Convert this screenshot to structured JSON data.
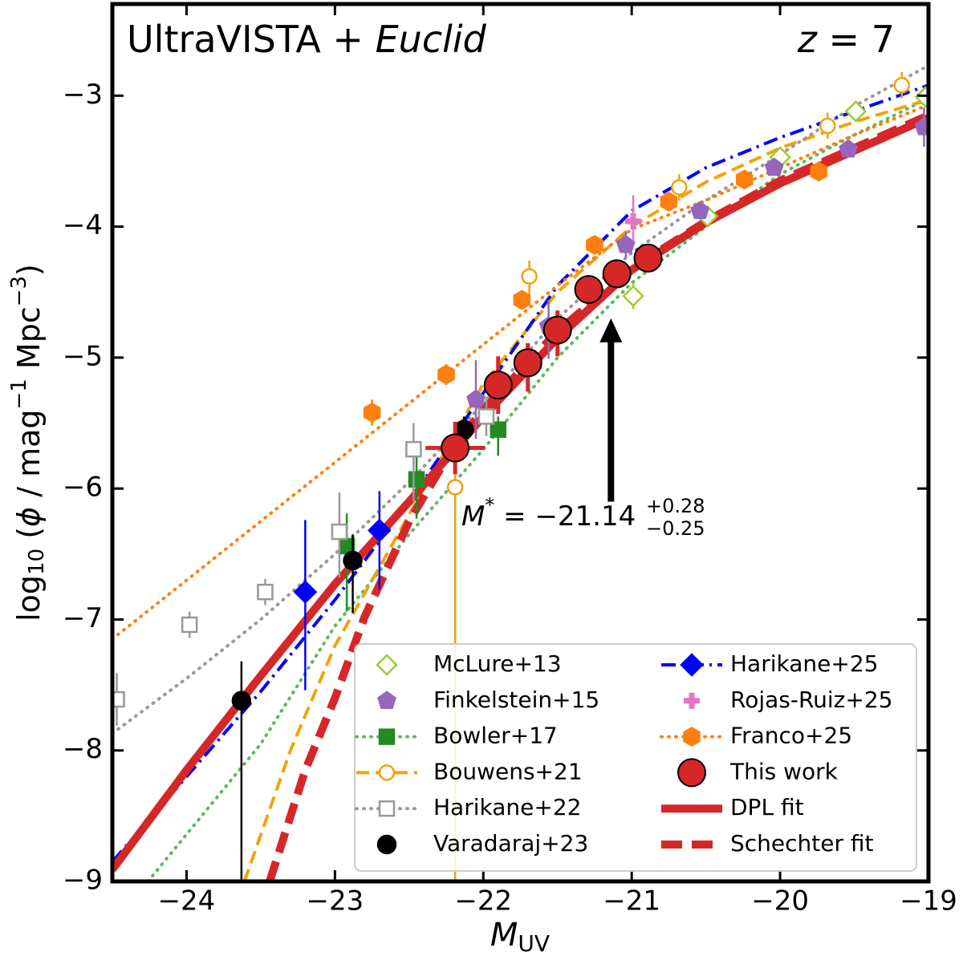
{
  "chart_data": {
    "type": "scatter",
    "title": {
      "text": "UltraVISTA + ",
      "italic": "Euclid"
    },
    "redshift_label": {
      "italic": "z",
      "text": " = 7"
    },
    "xlabel": {
      "italic": "M",
      "sub": "UV"
    },
    "ylabel": {
      "log": "log",
      "base": "10",
      "open": " (",
      "phi": "ϕ",
      "unit1": " / mag",
      "exp1": "−1",
      "unit2": " Mpc",
      "exp2": "−3",
      "close": ")"
    },
    "xlim": [
      -24.5,
      -19
    ],
    "ylim": [
      -9,
      -2.3
    ],
    "xticks": [
      {
        "value": -24,
        "label": "−24"
      },
      {
        "value": -23,
        "label": "−23"
      },
      {
        "value": -22,
        "label": "−22"
      },
      {
        "value": -21,
        "label": "−21"
      },
      {
        "value": -20,
        "label": "−20"
      },
      {
        "value": -19,
        "label": "−19"
      }
    ],
    "yticks": [
      {
        "value": -9,
        "label": "−9"
      },
      {
        "value": -8,
        "label": "−8"
      },
      {
        "value": -7,
        "label": "−7"
      },
      {
        "value": -6,
        "label": "−6"
      },
      {
        "value": -5,
        "label": "−5"
      },
      {
        "value": -4,
        "label": "−4"
      },
      {
        "value": -3,
        "label": "−3"
      }
    ],
    "legend": "lower right",
    "annotation": {
      "x": -21.14,
      "y_start": -6.1,
      "y_end": -4.7,
      "symbol": "M",
      "sup": "*",
      "text": " = −21.14",
      "err_hi": "+0.28",
      "err_lo": "−0.25"
    },
    "series": [
      {
        "name": "McLure+13",
        "color": "#9acd32",
        "marker": "diamond",
        "filled": false,
        "x": [
          -20.99,
          -20.49,
          -20.0,
          -19.49,
          -19.02
        ],
        "y": [
          -4.53,
          -3.92,
          -3.47,
          -3.12,
          -3.01
        ],
        "yerr": [
          [
            0.1,
            0.1
          ],
          [
            0.05,
            0.05
          ],
          [
            0.05,
            0.05
          ],
          [
            0.05,
            0.05
          ],
          [
            0.05,
            0.05
          ]
        ]
      },
      {
        "name": "Finkelstein+15",
        "color": "#9467bd",
        "marker": "pentagon",
        "filled": true,
        "x": [
          -22.05,
          -21.56,
          -21.04,
          -20.54,
          -20.04,
          -19.54,
          -19.03
        ],
        "y": [
          -5.32,
          -4.76,
          -4.14,
          -3.88,
          -3.55,
          -3.41,
          -3.24
        ],
        "yerr": [
          [
            0.3,
            0.3
          ],
          [
            0.25,
            0.2
          ],
          [
            0.1,
            0.1
          ],
          [
            0.05,
            0.05
          ],
          [
            0.05,
            0.05
          ],
          [
            0.05,
            0.05
          ],
          [
            0.15,
            0.15
          ]
        ]
      },
      {
        "name": "Bowler+17",
        "color": "#228b22",
        "marker": "square",
        "filled": true,
        "x": [
          -22.92,
          -22.45,
          -21.9
        ],
        "y": [
          -6.44,
          -5.93,
          -5.55
        ],
        "yerr": [
          [
            0.5,
            0.25
          ],
          [
            0.3,
            0.2
          ],
          [
            0.2,
            0.1
          ]
        ],
        "line": {
          "style": "dotted",
          "color": "#5cb85c",
          "width": 4,
          "x": [
            -24.26,
            -23.5,
            -23,
            -22.5,
            -22,
            -21.5,
            -21,
            -20.5,
            -20,
            -19.5,
            -19
          ],
          "y": [
            -9,
            -7.95,
            -7.05,
            -6.35,
            -5.7,
            -5.0,
            -4.43,
            -4.0,
            -3.6,
            -3.3,
            -3.02
          ]
        }
      },
      {
        "name": "Bouwens+21",
        "color": "#f0a30a",
        "marker": "circle",
        "filled": false,
        "x": [
          -22.19,
          -21.69,
          -20.68,
          -19.68,
          -19.18
        ],
        "y": [
          -5.99,
          -4.38,
          -3.7,
          -3.23,
          -2.92
        ],
        "yerr": [
          [
            3,
            0.3
          ],
          [
            0.15,
            0.12
          ],
          [
            0.1,
            0.1
          ],
          [
            0.1,
            0.1
          ],
          [
            0.1,
            0.1
          ]
        ],
        "line": {
          "style": "dashed",
          "color": "#f0a30a",
          "width": 4,
          "x": [
            -23.61,
            -23.3,
            -23,
            -22.5,
            -22,
            -21.5,
            -21,
            -20.5,
            -20,
            -19.5,
            -19
          ],
          "y": [
            -9,
            -8.0,
            -7.2,
            -6.2,
            -5.2,
            -4.5,
            -4.0,
            -3.66,
            -3.4,
            -3.2,
            -3.03
          ]
        }
      },
      {
        "name": "Harikane+22",
        "color": "#999999",
        "marker": "square",
        "filled": false,
        "x": [
          -24.47,
          -23.98,
          -23.47,
          -22.97,
          -22.47,
          -21.98
        ],
        "y": [
          -7.61,
          -7.04,
          -6.79,
          -6.33,
          -5.7,
          -5.45
        ],
        "yerr": [
          [
            0.2,
            0.2
          ],
          [
            0.1,
            0.1
          ],
          [
            0.1,
            0.1
          ],
          [
            0.35,
            0.3
          ],
          [
            0.4,
            0.2
          ],
          [
            0.15,
            0.15
          ]
        ],
        "line": {
          "style": "dotted",
          "color": "#999999",
          "width": 4,
          "x": [
            -24.5,
            -24,
            -23.5,
            -23,
            -22.5,
            -22,
            -21.5,
            -21,
            -20.5,
            -20,
            -19.5,
            -19
          ],
          "y": [
            -7.87,
            -7.45,
            -7.0,
            -6.5,
            -5.95,
            -5.35,
            -4.7,
            -4.2,
            -3.8,
            -3.45,
            -3.08,
            -2.77
          ]
        }
      },
      {
        "name": "Varadaraj+23",
        "color": "#000000",
        "marker": "circle",
        "filled": true,
        "x": [
          -23.63,
          -22.88,
          -22.13
        ],
        "y": [
          -7.62,
          -6.55,
          -5.55
        ],
        "yerr": [
          [
            1.6,
            0.3
          ],
          [
            0.4,
            0.2
          ],
          [
            0.1,
            0.1
          ]
        ]
      },
      {
        "name": "Harikane+25",
        "color": "#0000ff",
        "marker": "diamond",
        "filled": true,
        "x": [
          -23.2,
          -22.7
        ],
        "y": [
          -6.79,
          -6.32
        ],
        "yerr": [
          [
            0.75,
            0.55
          ],
          [
            0.45,
            0.3
          ]
        ],
        "line": {
          "style": "dashdot",
          "color": "#0000ff",
          "width": 4,
          "x": [
            -24.5,
            -24,
            -23.5,
            -23,
            -22.5,
            -22,
            -21.5,
            -21,
            -20.5,
            -20,
            -19.5,
            -19
          ],
          "y": [
            -8.85,
            -8.2,
            -7.55,
            -6.85,
            -6.1,
            -5.27,
            -4.45,
            -3.88,
            -3.55,
            -3.32,
            -3.12,
            -2.92
          ]
        }
      },
      {
        "name": "Rojas-Ruiz+25",
        "color": "#e377c2",
        "marker": "plus",
        "filled": true,
        "x": [
          -20.99
        ],
        "y": [
          -3.96
        ],
        "yerr": [
          [
            0.15,
            0.2
          ]
        ]
      },
      {
        "name": "Franco+25",
        "color": "#ff7f0e",
        "marker": "hexagon",
        "filled": true,
        "x": [
          -22.75,
          -22.25,
          -21.74,
          -21.25,
          -20.75,
          -20.24,
          -19.74
        ],
        "y": [
          -5.42,
          -5.13,
          -4.56,
          -4.14,
          -3.81,
          -3.64,
          -3.58
        ],
        "yerr": [
          [
            0.1,
            0.1
          ],
          [
            0.08,
            0.08
          ],
          [
            0.06,
            0.06
          ],
          [
            0.05,
            0.05
          ],
          [
            0.05,
            0.05
          ],
          [
            0.05,
            0.05
          ],
          [
            0.05,
            0.05
          ]
        ],
        "line": {
          "style": "dotted",
          "color": "#ff7f0e",
          "width": 4,
          "x": [
            -24.5,
            -23.5,
            -22.5,
            -21.5,
            -21,
            -20.5,
            -20,
            -19.5,
            -19
          ],
          "y": [
            -7.15,
            -6.25,
            -5.35,
            -4.45,
            -4.02,
            -3.8,
            -3.55,
            -3.3,
            -3.07
          ]
        }
      },
      {
        "name": "This work",
        "color": "#d62728",
        "marker": "bigcircle",
        "filled": true,
        "x": [
          -22.19,
          -21.9,
          -21.7,
          -21.5,
          -21.29,
          -21.1,
          -20.89
        ],
        "y": [
          -5.69,
          -5.21,
          -5.04,
          -4.79,
          -4.48,
          -4.36,
          -4.24
        ],
        "yerr": [
          [
            0.2,
            0.2
          ],
          [
            0.22,
            0.22
          ],
          [
            0.22,
            0.15
          ],
          [
            0.2,
            0.15
          ],
          [
            0.15,
            0.1
          ],
          [
            0.1,
            0.1
          ],
          [
            0.1,
            0.1
          ]
        ],
        "xerr": [
          0.2,
          null,
          null,
          null,
          null,
          null,
          null
        ]
      },
      {
        "name": "DPL fit",
        "color": "#d62728",
        "line": {
          "style": "solid",
          "color": "#d62728",
          "width": 10,
          "x": [
            -24.5,
            -24,
            -23.5,
            -23,
            -22.5,
            -22,
            -21.5,
            -21,
            -20.5,
            -20,
            -19.5,
            -19
          ],
          "y": [
            -8.91,
            -8.15,
            -7.43,
            -6.73,
            -6.1,
            -5.45,
            -4.85,
            -4.33,
            -3.97,
            -3.67,
            -3.42,
            -3.17
          ]
        }
      },
      {
        "name": "Schechter fit",
        "color": "#d62728",
        "line": {
          "style": "bigdash",
          "color": "#d62728",
          "width": 10,
          "x": [
            -23.44,
            -23.2,
            -23,
            -22.8,
            -22.5,
            -22.2,
            -22,
            -21.5,
            -21,
            -20.5,
            -20,
            -19.5,
            -19
          ],
          "y": [
            -9,
            -8.15,
            -7.6,
            -6.98,
            -6.25,
            -5.68,
            -5.4,
            -4.8,
            -4.32,
            -3.96,
            -3.65,
            -3.4,
            -3.15
          ]
        }
      }
    ]
  }
}
